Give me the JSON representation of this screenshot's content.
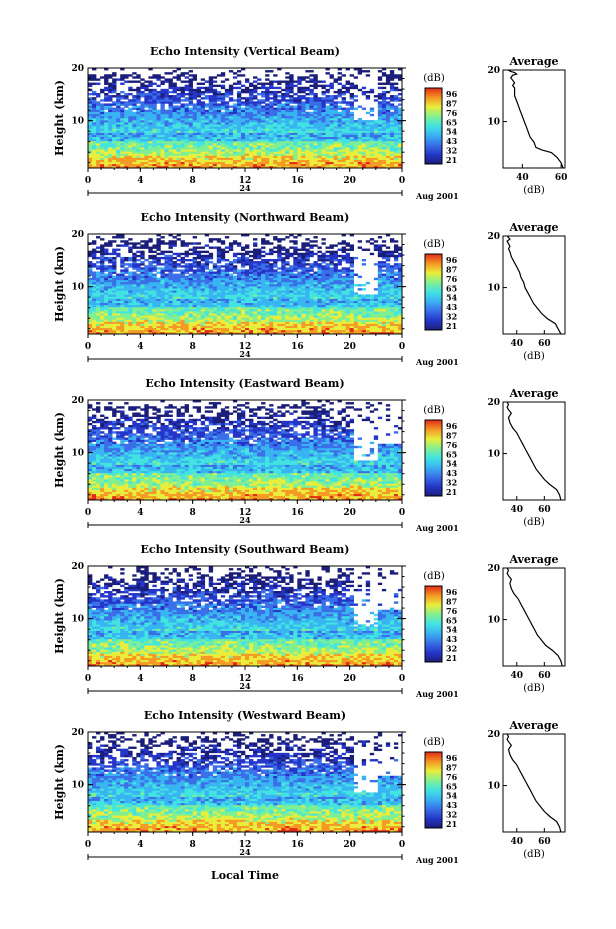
{
  "figure": {
    "xlabel": "Local Time"
  },
  "chart_data": [
    {
      "type": "heatmap",
      "title": "Echo Intensity (Vertical Beam)",
      "ylabel": "Height (km)",
      "xticks": [
        "0",
        "4",
        "8",
        "12",
        "16",
        "20",
        "0"
      ],
      "yticks": [
        "20",
        "10"
      ],
      "xlim": [
        0,
        24
      ],
      "ylim": [
        1,
        20
      ],
      "date_marker": "24",
      "date_label": "Aug 2001",
      "colorbar": {
        "title": "(dB)",
        "ticks": [
          "96",
          "87",
          "76",
          "65",
          "54",
          "43",
          "32",
          "21"
        ]
      },
      "avg_profile": {
        "title": "Average",
        "xlabel": "(dB)",
        "xticks": [
          "40",
          "60"
        ],
        "yticks": [
          "20",
          "10"
        ],
        "xlim": [
          30,
          62
        ],
        "x": [
          61,
          60,
          58,
          55,
          50,
          47,
          46,
          44,
          43,
          42,
          41,
          40,
          39,
          38,
          37,
          36,
          36,
          36,
          35,
          36,
          35,
          34,
          35,
          37,
          36,
          34,
          33,
          34
        ],
        "y": [
          1,
          2,
          3,
          4,
          4.5,
          5,
          6,
          7,
          8,
          9,
          10,
          11,
          12,
          13,
          14,
          15,
          16,
          16.5,
          17,
          17.5,
          18,
          18.5,
          19,
          19.2,
          19.5,
          19.7,
          19.9,
          20
        ]
      }
    },
    {
      "type": "heatmap",
      "title": "Echo Intensity (Northward Beam)",
      "ylabel": "Height (km)",
      "xticks": [
        "0",
        "4",
        "8",
        "12",
        "16",
        "20",
        "0"
      ],
      "yticks": [
        "20",
        "10"
      ],
      "xlim": [
        0,
        24
      ],
      "ylim": [
        1,
        20
      ],
      "date_marker": "24",
      "date_label": "Aug 2001",
      "colorbar": {
        "title": "(dB)",
        "ticks": [
          "96",
          "87",
          "76",
          "65",
          "54",
          "43",
          "32",
          "21"
        ]
      },
      "avg_profile": {
        "title": "Average",
        "xlabel": "(dB)",
        "xticks": [
          "40",
          "60"
        ],
        "yticks": [
          "20",
          "10"
        ],
        "xlim": [
          30,
          75
        ],
        "x": [
          72,
          70,
          68,
          62,
          58,
          55,
          52,
          50,
          48,
          46,
          45,
          43,
          42,
          40,
          38,
          36,
          35,
          34,
          35,
          34,
          33,
          35,
          34,
          33
        ],
        "y": [
          1,
          2,
          3,
          4,
          5,
          6,
          7,
          8,
          9,
          10,
          11,
          12,
          13,
          14,
          15,
          16,
          17,
          17.5,
          18,
          18.5,
          19,
          19.4,
          19.7,
          20
        ]
      }
    },
    {
      "type": "heatmap",
      "title": "Echo Intensity (Eastward Beam)",
      "ylabel": "Height (km)",
      "xticks": [
        "0",
        "4",
        "8",
        "12",
        "16",
        "20",
        "0"
      ],
      "yticks": [
        "20",
        "10"
      ],
      "xlim": [
        0,
        24
      ],
      "ylim": [
        1,
        20
      ],
      "date_marker": "24",
      "date_label": "Aug 2001",
      "colorbar": {
        "title": "(dB)",
        "ticks": [
          "96",
          "87",
          "76",
          "65",
          "54",
          "43",
          "32",
          "21"
        ]
      },
      "avg_profile": {
        "title": "Average",
        "xlabel": "(dB)",
        "xticks": [
          "40",
          "60"
        ],
        "yticks": [
          "20",
          "10"
        ],
        "xlim": [
          30,
          75
        ],
        "x": [
          72,
          71,
          69,
          64,
          60,
          57,
          54,
          52,
          50,
          48,
          46,
          44,
          42,
          40,
          37,
          35,
          34,
          36,
          34,
          33,
          34,
          33
        ],
        "y": [
          1,
          2,
          3,
          4,
          5,
          6,
          7,
          8,
          9,
          10,
          11,
          12,
          13,
          14,
          15,
          16,
          17,
          17.8,
          18.5,
          19,
          19.5,
          20
        ]
      }
    },
    {
      "type": "heatmap",
      "title": "Echo Intensity (Southward Beam)",
      "ylabel": "Height (km)",
      "xticks": [
        "0",
        "4",
        "8",
        "12",
        "16",
        "20",
        "0"
      ],
      "yticks": [
        "20",
        "10"
      ],
      "xlim": [
        0,
        24
      ],
      "ylim": [
        1,
        20
      ],
      "date_marker": "24",
      "date_label": "Aug 2001",
      "colorbar": {
        "title": "(dB)",
        "ticks": [
          "96",
          "87",
          "76",
          "65",
          "54",
          "43",
          "32",
          "21"
        ]
      },
      "avg_profile": {
        "title": "Average",
        "xlabel": "(dB)",
        "xticks": [
          "40",
          "60"
        ],
        "yticks": [
          "20",
          "10"
        ],
        "xlim": [
          30,
          75
        ],
        "x": [
          73,
          72,
          70,
          66,
          61,
          58,
          55,
          53,
          51,
          49,
          47,
          45,
          43,
          41,
          38,
          36,
          35,
          36,
          34,
          33,
          34,
          33
        ],
        "y": [
          1,
          2,
          3,
          4,
          5,
          6,
          7,
          8,
          9,
          10,
          11,
          12,
          13,
          14,
          15,
          16,
          17,
          17.8,
          18.5,
          19,
          19.5,
          20
        ]
      }
    },
    {
      "type": "heatmap",
      "title": "Echo Intensity (Westward Beam)",
      "ylabel": "Height (km)",
      "xticks": [
        "0",
        "4",
        "8",
        "12",
        "16",
        "20",
        "0"
      ],
      "yticks": [
        "20",
        "10"
      ],
      "xlim": [
        0,
        24
      ],
      "ylim": [
        1,
        20
      ],
      "date_marker": "24",
      "date_label": "Aug 2001",
      "colorbar": {
        "title": "(dB)",
        "ticks": [
          "96",
          "87",
          "76",
          "65",
          "54",
          "43",
          "32",
          "21"
        ]
      },
      "avg_profile": {
        "title": "Average",
        "xlabel": "(dB)",
        "xticks": [
          "40",
          "60"
        ],
        "yticks": [
          "20",
          "10"
        ],
        "xlim": [
          30,
          75
        ],
        "x": [
          72,
          71,
          69,
          64,
          60,
          57,
          54,
          52,
          50,
          48,
          46,
          44,
          42,
          40,
          37,
          35,
          34,
          36,
          34,
          33,
          34,
          33
        ],
        "y": [
          1,
          2,
          3,
          4,
          5,
          6,
          7,
          8,
          9,
          10,
          11,
          12,
          13,
          14,
          15,
          16,
          17,
          17.8,
          18.5,
          19,
          19.5,
          20
        ]
      }
    }
  ]
}
